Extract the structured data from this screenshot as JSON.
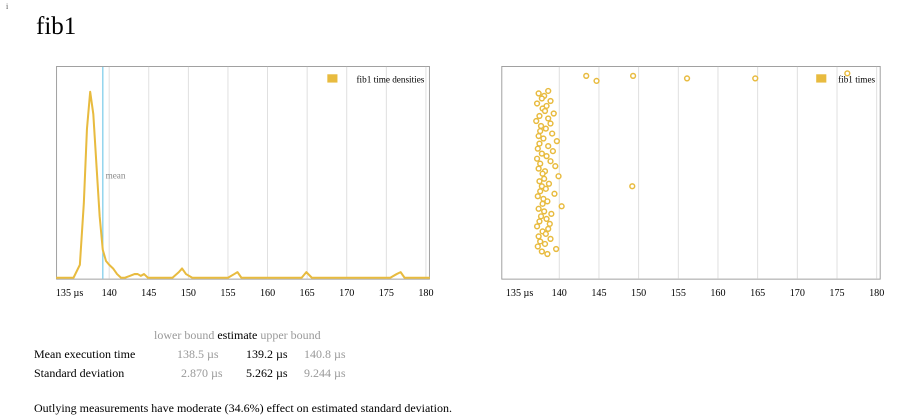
{
  "title": "fib1",
  "corner_mark": "i",
  "colors": {
    "accent": "#e8bb3f",
    "mean_line": "#6dc6e8",
    "grid": "#dddddd",
    "frame": "#999999"
  },
  "chart_data": [
    {
      "type": "line",
      "legend": "fib1 time densities",
      "legend_position": "top-right",
      "x_tick_labels": [
        "135 µs",
        "140",
        "145",
        "150",
        "155",
        "160",
        "165",
        "170",
        "175",
        "180"
      ],
      "x_ticks": [
        135,
        140,
        145,
        150,
        155,
        160,
        165,
        170,
        175,
        180
      ],
      "xlim": [
        133.3,
        180.5
      ],
      "ylim": [
        0,
        1.0
      ],
      "grid": true,
      "mean_label": "mean",
      "mean_value": 139.2,
      "x": [
        133.3,
        134.5,
        135.5,
        136.3,
        136.8,
        137.2,
        137.6,
        138.0,
        138.4,
        138.8,
        139.2,
        139.6,
        140.0,
        140.5,
        141.0,
        141.5,
        142.0,
        142.6,
        143.2,
        143.6,
        144.0,
        144.4,
        144.9,
        146.0,
        148.0,
        148.8,
        149.2,
        149.7,
        150.5,
        152.0,
        155.0,
        155.8,
        156.2,
        156.7,
        158.0,
        162.0,
        164.3,
        164.9,
        165.6,
        168.0,
        172.0,
        175.5,
        176.3,
        176.8,
        177.3,
        180.5
      ],
      "y": [
        0,
        0,
        0,
        0.07,
        0.4,
        0.8,
        1.0,
        0.88,
        0.6,
        0.33,
        0.15,
        0.09,
        0.07,
        0.05,
        0.02,
        0.0,
        0.0,
        0.01,
        0.02,
        0.02,
        0.01,
        0.02,
        0.0,
        0.0,
        0.0,
        0.03,
        0.05,
        0.02,
        0.0,
        0.0,
        0.0,
        0.02,
        0.03,
        0.0,
        0.0,
        0.0,
        0.0,
        0.03,
        0.0,
        0.0,
        0.0,
        0.0,
        0.02,
        0.03,
        0.0,
        0.0
      ]
    },
    {
      "type": "scatter",
      "legend": "fib1 times",
      "legend_position": "top-right",
      "x_tick_labels": [
        "135 µs",
        "140",
        "145",
        "150",
        "155",
        "160",
        "165",
        "170",
        "175",
        "180"
      ],
      "x_ticks": [
        135,
        140,
        145,
        150,
        155,
        160,
        165,
        170,
        175,
        180
      ],
      "xlim": [
        132.7,
        180.5
      ],
      "grid": true,
      "x": [
        138.6,
        137.4,
        138.1,
        137.8,
        138.9,
        137.2,
        138.4,
        137.9,
        138.2,
        139.3,
        137.5,
        138.6,
        137.1,
        138.9,
        137.7,
        138.3,
        137.6,
        139.1,
        137.4,
        138.0,
        139.7,
        137.5,
        138.6,
        137.3,
        139.2,
        137.8,
        138.4,
        137.2,
        138.9,
        137.6,
        139.5,
        137.4,
        138.2,
        137.9,
        139.9,
        138.1,
        137.5,
        138.7,
        137.8,
        138.3,
        137.6,
        139.4,
        137.3,
        138.0,
        138.5,
        137.9,
        140.3,
        137.4,
        138.1,
        139.0,
        137.7,
        138.4,
        137.5,
        138.8,
        137.2,
        138.6,
        137.9,
        138.3,
        137.4,
        138.9,
        137.6,
        138.2,
        137.3,
        139.6,
        137.8,
        138.5,
        143.4,
        144.7,
        149.3,
        156.1,
        164.7,
        176.3,
        149.2
      ],
      "y": [
        73,
        72,
        71,
        70,
        69,
        68,
        67,
        66,
        65,
        64,
        63,
        62,
        61,
        60,
        59,
        58,
        57,
        56,
        55,
        54,
        53,
        52,
        51,
        50,
        49,
        48,
        47,
        46,
        45,
        44,
        43,
        42,
        41,
        40,
        39,
        38,
        37,
        36,
        35,
        34,
        33,
        32,
        31,
        30,
        29,
        28,
        27,
        26,
        25,
        24,
        23,
        22,
        21,
        20,
        19,
        18,
        17,
        16,
        15,
        14,
        13,
        12,
        11,
        10,
        9,
        8,
        79,
        77,
        79,
        78,
        78,
        80,
        35
      ]
    }
  ],
  "stats": {
    "header": {
      "lower": "lower bound",
      "estimate": "estimate",
      "upper": "upper bound"
    },
    "rows": [
      {
        "label": "Mean execution time",
        "lower": "138.5 µs",
        "estimate": "139.2 µs",
        "upper": "140.8 µs"
      },
      {
        "label": "Standard deviation",
        "lower": "2.870 µs",
        "estimate": "5.262 µs",
        "upper": "9.244 µs"
      }
    ]
  },
  "outlier_note": "Outlying measurements have moderate (34.6%) effect on estimated standard deviation."
}
